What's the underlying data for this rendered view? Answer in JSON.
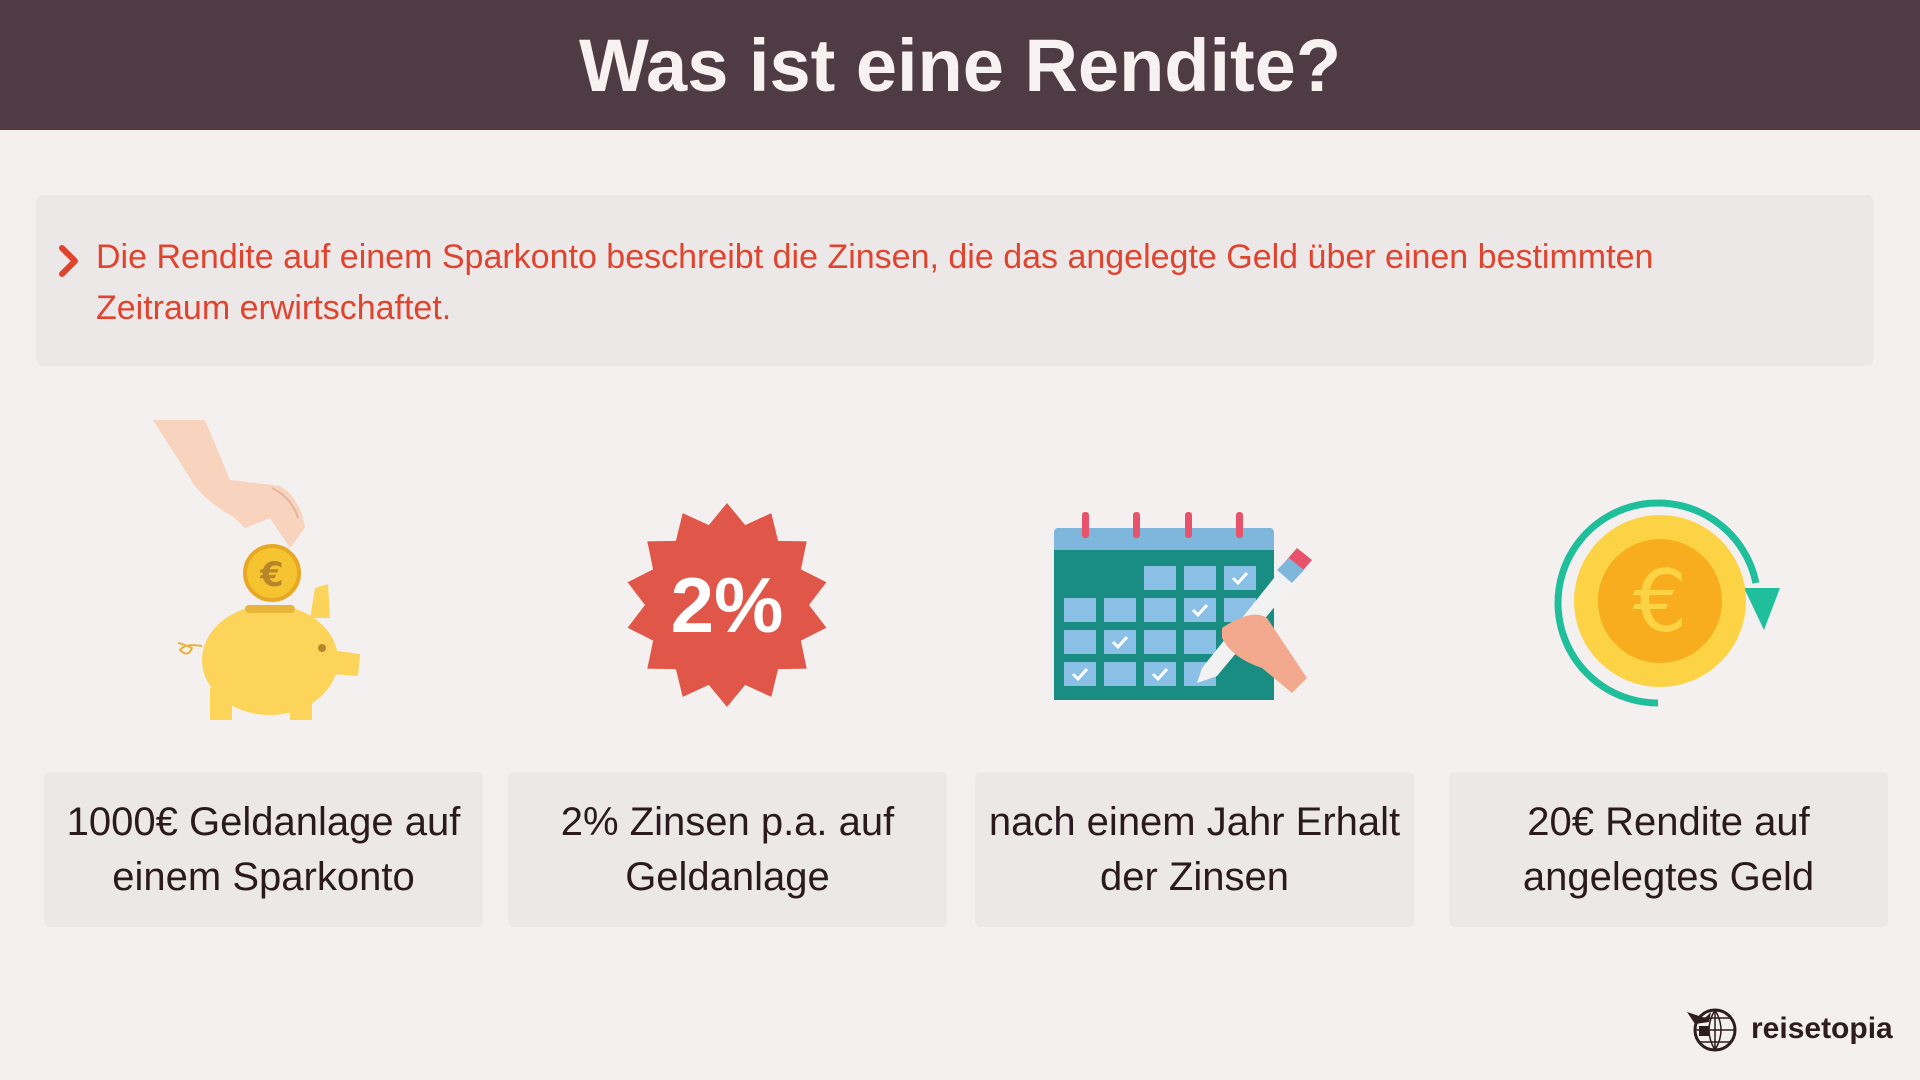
{
  "header": {
    "title": "Was ist eine Rendite?"
  },
  "info": {
    "icon": "chevron-right-icon",
    "text": "Die Rendite auf einem Sparkonto beschreibt die Zinsen, die das angelegte Geld über einen bestimmten Zeitraum erwirtschaftet."
  },
  "steps": [
    {
      "icon": "piggy-bank-icon",
      "label": "1000€ Geldanlage auf einem Sparkonto"
    },
    {
      "icon": "percent-badge-icon",
      "badge_text": "2%",
      "label": "2% Zinsen p.a. auf Geldanlage"
    },
    {
      "icon": "calendar-icon",
      "label": "nach einem Jahr Erhalt der Zinsen"
    },
    {
      "icon": "euro-coin-return-icon",
      "label": "20€ Rendite auf angelegtes Geld"
    }
  ],
  "logo": {
    "text": "reisetopia",
    "icon": "globe-airplane-icon"
  },
  "colors": {
    "header_bg": "#4f3b44",
    "accent_red": "#e0432e",
    "card_bg": "#ece8e8",
    "page_bg": "#f4f0ef"
  }
}
